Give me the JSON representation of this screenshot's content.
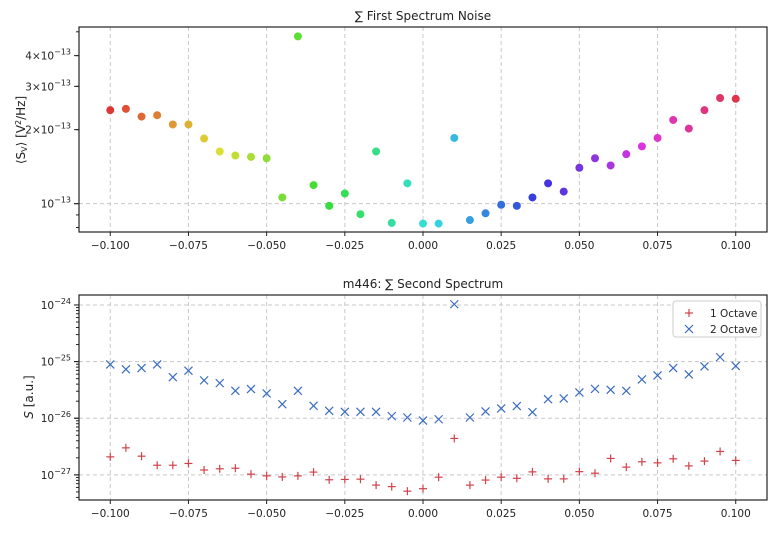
{
  "chart_data": [
    {
      "type": "scatter",
      "title": "∑ First Spectrum Noise",
      "xlabel": "",
      "ylabel": "⟨S_V⟩ [V²/Hz]",
      "ylabel_parts": {
        "open": "⟨S",
        "sub": "V",
        "close": "⟩ [V",
        "sup": "2",
        "end": "/Hz]"
      },
      "yscale": "log",
      "xlim": [
        -0.11,
        0.11
      ],
      "ylim": [
        7.67e-14,
        5.23e-13
      ],
      "grid": true,
      "colormap": "hsv",
      "xticks": [
        -0.1,
        -0.075,
        -0.05,
        -0.025,
        0.0,
        0.025,
        0.05,
        0.075,
        0.1
      ],
      "xtick_labels": [
        "−0.100",
        "−0.075",
        "−0.050",
        "−0.025",
        "0.000",
        "0.025",
        "0.050",
        "0.075",
        "0.100"
      ],
      "yticks": [
        {
          "value": 1e-13,
          "base": "10",
          "exp": "−13",
          "grid": true
        },
        {
          "value": 2e-13,
          "base": "2×10",
          "exp": "−13",
          "grid": false
        },
        {
          "value": 3e-13,
          "base": "3×10",
          "exp": "−13",
          "grid": false
        },
        {
          "value": 4e-13,
          "base": "4×10",
          "exp": "−13",
          "grid": false
        }
      ],
      "x": [
        -0.1,
        -0.095,
        -0.09,
        -0.085,
        -0.08,
        -0.075,
        -0.07,
        -0.065,
        -0.06,
        -0.055,
        -0.05,
        -0.045,
        -0.04,
        -0.035,
        -0.03,
        -0.025,
        -0.02,
        -0.015,
        -0.01,
        -0.005,
        0.0,
        0.005,
        0.01,
        0.015,
        0.02,
        0.025,
        0.03,
        0.035,
        0.04,
        0.045,
        0.05,
        0.055,
        0.06,
        0.065,
        0.07,
        0.075,
        0.08,
        0.085,
        0.09,
        0.095,
        0.1
      ],
      "y": [
        2.4e-13,
        2.43e-13,
        2.26e-13,
        2.29e-13,
        2.1e-13,
        2.1e-13,
        1.84e-13,
        1.63e-13,
        1.57e-13,
        1.55e-13,
        1.53e-13,
        1.06e-13,
        4.79e-13,
        1.19e-13,
        9.8e-14,
        1.1e-13,
        9.06e-14,
        1.63e-13,
        8.35e-14,
        1.21e-13,
        8.3e-14,
        8.3e-14,
        1.85e-13,
        8.58e-14,
        9.14e-14,
        9.9e-14,
        9.8e-14,
        1.06e-13,
        1.21e-13,
        1.12e-13,
        1.4e-13,
        1.53e-13,
        1.43e-13,
        1.59e-13,
        1.71e-13,
        1.85e-13,
        2.19e-13,
        2.02e-13,
        2.4e-13,
        2.69e-13,
        2.67e-13
      ]
    },
    {
      "type": "scatter",
      "title": "m446: ∑ Second Spectrum",
      "xlabel": "",
      "ylabel": "S [a.u.]",
      "ylabel_parts": {
        "var": "S",
        "unit": " [a.u.]"
      },
      "yscale": "log",
      "xlim": [
        -0.11,
        0.11
      ],
      "ylim": [
        3.6e-28,
        1.5e-24
      ],
      "grid": true,
      "legend": "top-right",
      "xticks": [
        -0.1,
        -0.075,
        -0.05,
        -0.025,
        0.0,
        0.025,
        0.05,
        0.075,
        0.1
      ],
      "xtick_labels": [
        "−0.100",
        "−0.075",
        "−0.050",
        "−0.025",
        "0.000",
        "0.025",
        "0.050",
        "0.075",
        "0.100"
      ],
      "yticks": [
        {
          "value": 1e-27,
          "base": "10",
          "exp": "−27",
          "grid": true
        },
        {
          "value": 1e-26,
          "base": "10",
          "exp": "−26",
          "grid": true
        },
        {
          "value": 1e-25,
          "base": "10",
          "exp": "−25",
          "grid": true
        },
        {
          "value": 1e-24,
          "base": "10",
          "exp": "−24",
          "grid": true
        }
      ],
      "x": [
        -0.1,
        -0.095,
        -0.09,
        -0.085,
        -0.08,
        -0.075,
        -0.07,
        -0.065,
        -0.06,
        -0.055,
        -0.05,
        -0.045,
        -0.04,
        -0.035,
        -0.03,
        -0.025,
        -0.02,
        -0.015,
        -0.01,
        -0.005,
        0.0,
        0.005,
        0.01,
        0.015,
        0.02,
        0.025,
        0.03,
        0.035,
        0.04,
        0.045,
        0.05,
        0.055,
        0.06,
        0.065,
        0.07,
        0.075,
        0.08,
        0.085,
        0.09,
        0.095,
        0.1
      ],
      "series": [
        {
          "name": "1 Octave",
          "marker": "+",
          "color": "#d0424a",
          "values": [
            2.08e-27,
            3e-27,
            2.14e-27,
            1.48e-27,
            1.48e-27,
            1.59e-27,
            1.22e-27,
            1.28e-27,
            1.31e-27,
            1.03e-27,
            9.6e-28,
            9.2e-28,
            9.6e-28,
            1.12e-27,
            8.2e-28,
            8.3e-28,
            8.4e-28,
            6.6e-28,
            6.2e-28,
            5.15e-28,
            5.7e-28,
            9.1e-28,
            4.4e-27,
            6.6e-28,
            8.1e-28,
            9.1e-28,
            8.7e-28,
            1.13e-27,
            8.5e-28,
            8.5e-28,
            1.14e-27,
            1.07e-27,
            1.95e-27,
            1.37e-27,
            1.7e-27,
            1.63e-27,
            1.92e-27,
            1.44e-27,
            1.75e-27,
            2.59e-27,
            1.8e-27
          ]
        },
        {
          "name": "2 Octave",
          "marker": "x",
          "color": "#3a6cc0",
          "values": [
            8.9e-26,
            7.3e-26,
            7.7e-26,
            8.9e-26,
            5.3e-26,
            6.9e-26,
            4.66e-26,
            4.17e-26,
            3.05e-26,
            3.27e-26,
            2.74e-26,
            1.77e-26,
            3.05e-26,
            1.66e-26,
            1.35e-26,
            1.3e-26,
            1.3e-26,
            1.3e-26,
            1.09e-26,
            1.03e-26,
            9.1e-27,
            9.6e-27,
            1.03e-24,
            1.03e-26,
            1.32e-26,
            1.49e-26,
            1.64e-26,
            1.28e-26,
            2.17e-26,
            2.24e-26,
            2.86e-26,
            3.3e-26,
            3.18e-26,
            3.05e-26,
            4.84e-26,
            5.7e-26,
            7.7e-26,
            5.94e-26,
            8.2e-26,
            1.2e-25,
            8.4e-26
          ]
        }
      ]
    }
  ]
}
